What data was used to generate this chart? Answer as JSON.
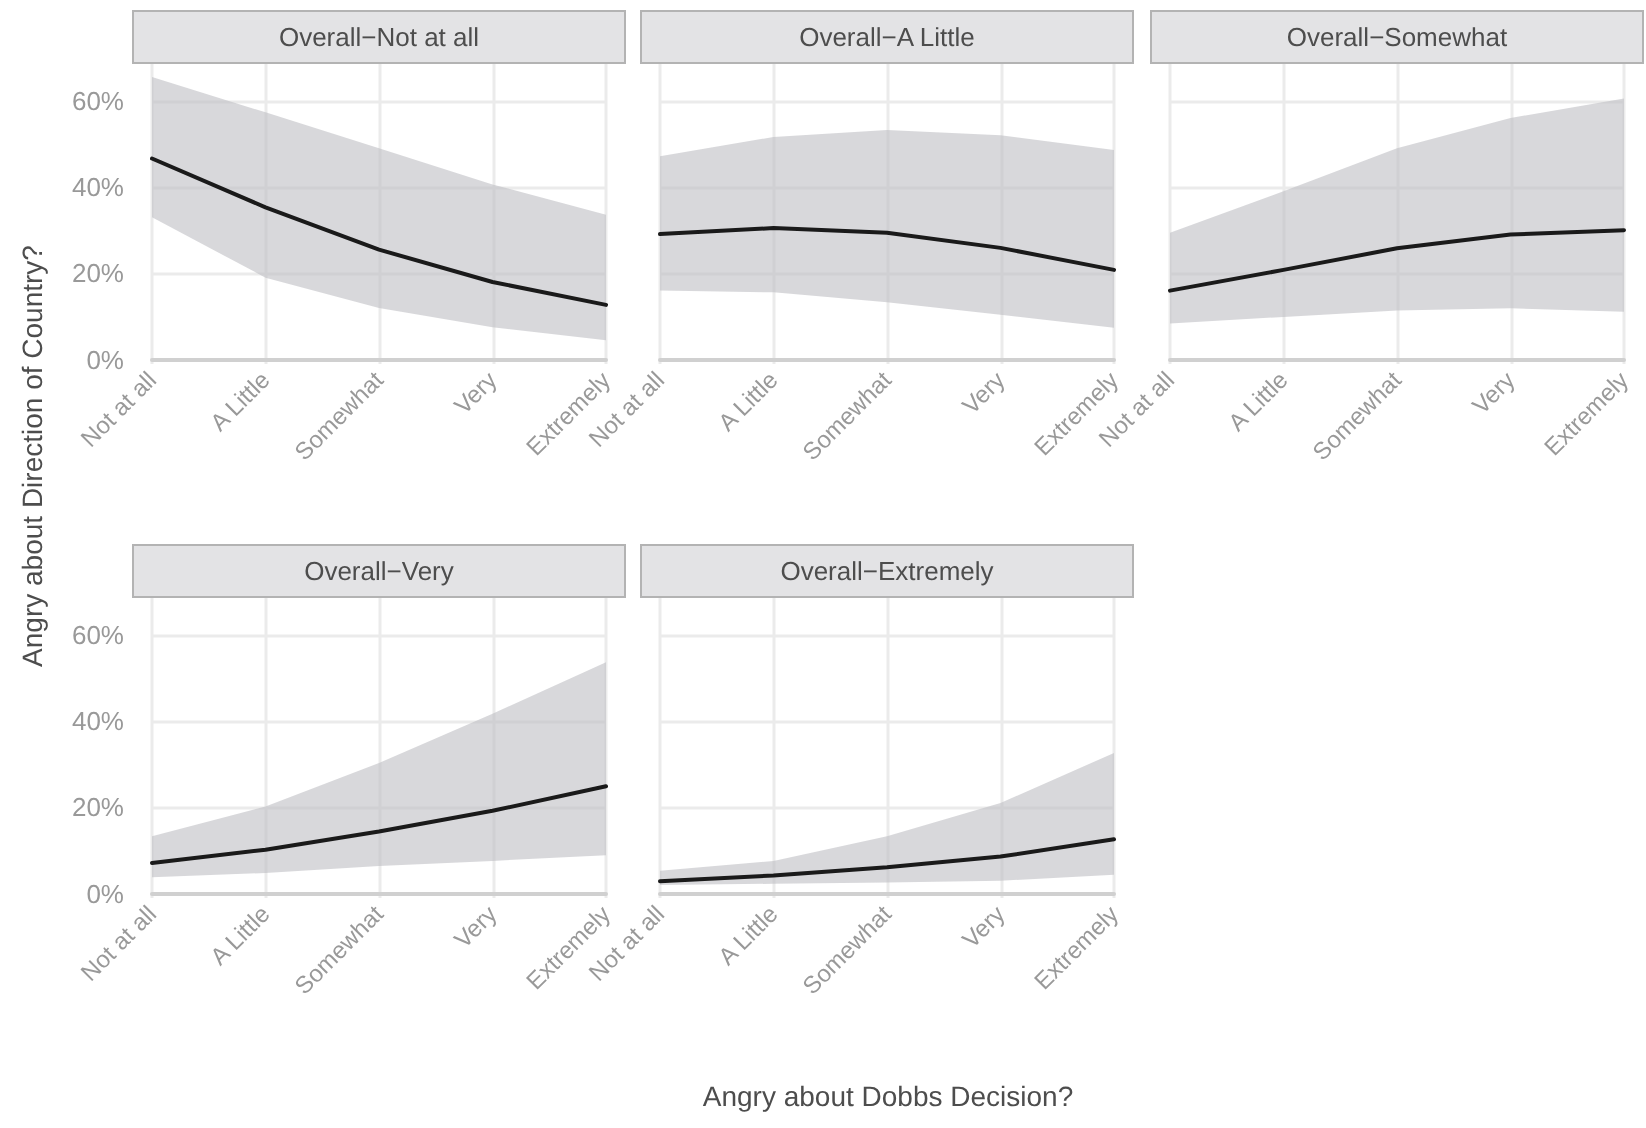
{
  "chart_data": [
    {
      "type": "line",
      "title": "Overall−Not at all",
      "ylabel": "Angry about Direction of Country?",
      "xlabel": "Angry about Dobbs Decision?",
      "categories": [
        "Not at all",
        "A Little",
        "Somewhat",
        "Very",
        "Extremely"
      ],
      "ylim": [
        -1,
        68.5
      ],
      "yticks": [
        {
          "value": 0,
          "label": "0%"
        },
        {
          "value": 20,
          "label": "20%"
        },
        {
          "value": 40,
          "label": "40%"
        },
        {
          "value": 60,
          "label": "60%"
        }
      ],
      "grid": true,
      "series": [
        {
          "color": "#1a1a1a",
          "values": [
            46.6,
            35.3,
            25.5,
            18,
            12.7
          ],
          "lower": [
            33,
            19,
            12,
            7.5,
            4.5
          ],
          "upper": [
            65.5,
            57.3,
            49,
            40.6,
            33.6
          ]
        }
      ]
    },
    {
      "type": "line",
      "title": "Overall−A Little",
      "categories": [
        "Not at all",
        "A Little",
        "Somewhat",
        "Very",
        "Extremely"
      ],
      "ylim": [
        -1,
        68.5
      ],
      "yticks": [
        {
          "value": 0,
          "label": null
        },
        {
          "value": 20,
          "label": null
        },
        {
          "value": 40,
          "label": null
        },
        {
          "value": 60,
          "label": null
        }
      ],
      "grid": true,
      "tick_labels": "x",
      "series": [
        {
          "color": "#1a1a1a",
          "values": [
            29.1,
            30.5,
            29.4,
            25.9,
            20.8
          ],
          "lower": [
            16,
            15.6,
            13.3,
            10.4,
            7.4
          ],
          "upper": [
            47.1,
            51.6,
            53.2,
            52,
            48.6
          ]
        }
      ]
    },
    {
      "type": "line",
      "title": "Overall−Somewhat",
      "categories": [
        "Not at all",
        "A Little",
        "Somewhat",
        "Very",
        "Extremely"
      ],
      "ylim": [
        -1,
        68.5
      ],
      "yticks": [
        {
          "value": 0,
          "label": null
        },
        {
          "value": 20,
          "label": null
        },
        {
          "value": 40,
          "label": null
        },
        {
          "value": 60,
          "label": null
        }
      ],
      "grid": true,
      "tick_labels": "x",
      "series": [
        {
          "color": "#1a1a1a",
          "values": [
            16,
            20.8,
            25.8,
            29,
            30
          ],
          "lower": [
            8.4,
            9.9,
            11.4,
            11.9,
            11.1
          ],
          "upper": [
            29.4,
            39,
            49,
            56,
            60.5
          ]
        }
      ]
    },
    {
      "type": "line",
      "title": "Overall−Very",
      "categories": [
        "Not at all",
        "A Little",
        "Somewhat",
        "Very",
        "Extremely"
      ],
      "ylim": [
        -1,
        68.5
      ],
      "yticks": [
        {
          "value": 0,
          "label": "0%"
        },
        {
          "value": 20,
          "label": "20%"
        },
        {
          "value": 40,
          "label": "40%"
        },
        {
          "value": 60,
          "label": "60%"
        }
      ],
      "grid": true,
      "series": [
        {
          "color": "#1a1a1a",
          "values": [
            7.1,
            10.2,
            14.4,
            19.2,
            24.9
          ],
          "lower": [
            3.8,
            4.8,
            6.4,
            7.6,
            8.9
          ],
          "upper": [
            13.3,
            20.2,
            30.3,
            41.7,
            53.6
          ]
        }
      ]
    },
    {
      "type": "line",
      "title": "Overall−Extremely",
      "categories": [
        "Not at all",
        "A Little",
        "Somewhat",
        "Very",
        "Extremely"
      ],
      "ylim": [
        -1,
        68.5
      ],
      "yticks": [
        {
          "value": 0,
          "label": null
        },
        {
          "value": 20,
          "label": null
        },
        {
          "value": 40,
          "label": null
        },
        {
          "value": 60,
          "label": null
        }
      ],
      "grid": true,
      "tick_labels": "x",
      "series": [
        {
          "color": "#1a1a1a",
          "values": [
            2.9,
            4.2,
            6.1,
            8.6,
            12.6
          ],
          "lower": [
            2,
            2.3,
            2.6,
            3,
            4.4
          ],
          "upper": [
            5.3,
            7.6,
            13.3,
            21,
            32.6
          ]
        }
      ]
    }
  ]
}
